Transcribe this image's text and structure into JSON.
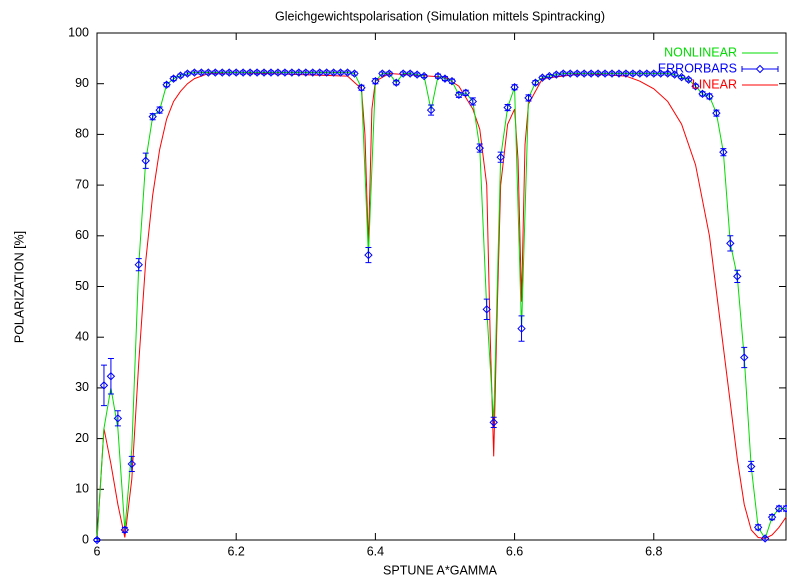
{
  "chart_data": {
    "type": "line",
    "title": "Gleichgewichtspolarisation (Simulation mittels Spintracking)",
    "xlabel": "SPTUNE A*GAMMA",
    "ylabel": "POLARIZATION [%]",
    "xlim": [
      6,
      6.99
    ],
    "ylim": [
      0,
      100
    ],
    "xticks": [
      6,
      6.2,
      6.4,
      6.6,
      6.8
    ],
    "yticks": [
      0,
      10,
      20,
      30,
      40,
      50,
      60,
      70,
      80,
      90,
      100
    ],
    "legend": "upper right",
    "series": [
      {
        "name": "NONLINEAR",
        "color": "#00dd00",
        "x": [
          6.0,
          6.01,
          6.02,
          6.03,
          6.04,
          6.05,
          6.06,
          6.07,
          6.08,
          6.09,
          6.1,
          6.11,
          6.12,
          6.13,
          6.14,
          6.15,
          6.16,
          6.17,
          6.18,
          6.19,
          6.2,
          6.21,
          6.22,
          6.23,
          6.24,
          6.25,
          6.26,
          6.27,
          6.28,
          6.29,
          6.3,
          6.31,
          6.32,
          6.33,
          6.34,
          6.35,
          6.36,
          6.37,
          6.38,
          6.39,
          6.4,
          6.41,
          6.42,
          6.43,
          6.44,
          6.45,
          6.46,
          6.47,
          6.48,
          6.49,
          6.5,
          6.51,
          6.52,
          6.53,
          6.54,
          6.55,
          6.56,
          6.57,
          6.58,
          6.59,
          6.6,
          6.61,
          6.62,
          6.63,
          6.64,
          6.65,
          6.66,
          6.67,
          6.68,
          6.69,
          6.7,
          6.71,
          6.72,
          6.73,
          6.74,
          6.75,
          6.76,
          6.77,
          6.78,
          6.79,
          6.8,
          6.81,
          6.82,
          6.83,
          6.84,
          6.85,
          6.86,
          6.87,
          6.88,
          6.89,
          6.9,
          6.91,
          6.92,
          6.93,
          6.94,
          6.95,
          6.96,
          6.97,
          6.98,
          6.99
        ],
        "values": [
          0,
          22,
          30,
          22,
          2,
          18,
          54.3,
          74.8,
          83.5,
          84.8,
          89.8,
          91,
          91.6,
          92,
          92.2,
          92.2,
          92.2,
          92.2,
          92.2,
          92.2,
          92.2,
          92.2,
          92.2,
          92.2,
          92.2,
          92.2,
          92.2,
          92.2,
          92.2,
          92.2,
          92.2,
          92.2,
          92.2,
          92.2,
          92.2,
          92.2,
          92.2,
          92,
          89.2,
          56.2,
          90.5,
          92,
          92,
          90.2,
          92,
          92,
          91.8,
          91.5,
          84.8,
          91.5,
          91,
          90.5,
          87.8,
          88.2,
          86.5,
          77.3,
          45.5,
          23.2,
          75.5,
          85.3,
          89.3,
          41.7,
          87.2,
          90.2,
          91.2,
          91.5,
          91.8,
          92,
          92,
          92,
          92,
          92,
          92,
          92,
          92,
          92,
          92,
          92,
          92,
          92,
          92,
          92,
          92,
          91.8,
          91.3,
          90.8,
          89.5,
          88,
          87.5,
          84.2,
          76.5,
          58.5,
          52,
          36,
          14.5,
          2.5,
          0.3,
          4.5,
          6.2,
          6.2
        ]
      },
      {
        "name": "ERRORBARS",
        "color": "#0000ff",
        "x": [
          6.0,
          6.01,
          6.02,
          6.03,
          6.04,
          6.05,
          6.06,
          6.07,
          6.08,
          6.09,
          6.1,
          6.11,
          6.12,
          6.13,
          6.14,
          6.15,
          6.16,
          6.17,
          6.18,
          6.19,
          6.2,
          6.21,
          6.22,
          6.23,
          6.24,
          6.25,
          6.26,
          6.27,
          6.28,
          6.29,
          6.3,
          6.31,
          6.32,
          6.33,
          6.34,
          6.35,
          6.36,
          6.37,
          6.38,
          6.39,
          6.4,
          6.41,
          6.42,
          6.43,
          6.44,
          6.45,
          6.46,
          6.47,
          6.48,
          6.49,
          6.5,
          6.51,
          6.52,
          6.53,
          6.54,
          6.55,
          6.56,
          6.57,
          6.58,
          6.59,
          6.6,
          6.61,
          6.62,
          6.63,
          6.64,
          6.65,
          6.66,
          6.67,
          6.68,
          6.69,
          6.7,
          6.71,
          6.72,
          6.73,
          6.74,
          6.75,
          6.76,
          6.77,
          6.78,
          6.79,
          6.8,
          6.81,
          6.82,
          6.83,
          6.84,
          6.85,
          6.86,
          6.87,
          6.88,
          6.89,
          6.9,
          6.91,
          6.92,
          6.93,
          6.94,
          6.95,
          6.96,
          6.97,
          6.98,
          6.99
        ],
        "values": [
          0,
          30.5,
          32.3,
          24,
          2,
          15,
          54.3,
          74.8,
          83.5,
          84.8,
          89.8,
          91,
          91.6,
          92,
          92.2,
          92.2,
          92.2,
          92.2,
          92.2,
          92.2,
          92.2,
          92.2,
          92.2,
          92.2,
          92.2,
          92.2,
          92.2,
          92.2,
          92.2,
          92.2,
          92.2,
          92.2,
          92.2,
          92.2,
          92.2,
          92.2,
          92.2,
          92,
          89.2,
          56.2,
          90.5,
          92,
          92,
          90.2,
          92,
          92,
          91.8,
          91.5,
          84.8,
          91.5,
          91,
          90.5,
          87.8,
          88.2,
          86.5,
          77.3,
          45.5,
          23.2,
          75.5,
          85.3,
          89.3,
          41.7,
          87.2,
          90.2,
          91.2,
          91.5,
          91.8,
          92,
          92,
          92,
          92,
          92,
          92,
          92,
          92,
          92,
          92,
          92,
          92,
          92,
          92,
          92,
          92,
          91.8,
          91.3,
          90.8,
          89.5,
          88,
          87.5,
          84.2,
          76.5,
          58.5,
          52,
          36,
          14.5,
          2.5,
          0.3,
          4.5,
          6.2,
          6.2
        ],
        "errors": [
          0.3,
          4,
          3.5,
          1.5,
          0.5,
          1.5,
          1.2,
          1.5,
          0.6,
          0.6,
          0.4,
          0.4,
          0.3,
          0.3,
          0.3,
          0.3,
          0.3,
          0.3,
          0.3,
          0.3,
          0.3,
          0.3,
          0.3,
          0.3,
          0.3,
          0.3,
          0.3,
          0.3,
          0.3,
          0.3,
          0.3,
          0.3,
          0.3,
          0.3,
          0.3,
          0.3,
          0.3,
          0.3,
          0.5,
          1.5,
          0.5,
          0.3,
          0.3,
          0.4,
          0.3,
          0.3,
          0.3,
          0.3,
          1,
          0.4,
          0.4,
          0.4,
          0.5,
          0.5,
          0.7,
          0.8,
          2,
          1,
          1,
          0.6,
          0.5,
          2.5,
          0.6,
          0.4,
          0.3,
          0.3,
          0.3,
          0.3,
          0.3,
          0.3,
          0.3,
          0.3,
          0.3,
          0.3,
          0.3,
          0.3,
          0.3,
          0.3,
          0.3,
          0.3,
          0.3,
          0.3,
          0.3,
          0.3,
          0.3,
          0.3,
          0.4,
          0.4,
          0.5,
          0.6,
          0.7,
          1.5,
          1.2,
          2,
          1,
          0.5,
          0.3,
          0.5,
          0.5,
          0.5
        ]
      },
      {
        "name": "LINEAR",
        "color": "#ff0000",
        "x": [
          6.0,
          6.01,
          6.02,
          6.03,
          6.04,
          6.05,
          6.06,
          6.07,
          6.08,
          6.09,
          6.1,
          6.11,
          6.12,
          6.13,
          6.14,
          6.16,
          6.2,
          6.36,
          6.38,
          6.385,
          6.39,
          6.395,
          6.4,
          6.42,
          6.5,
          6.52,
          6.54,
          6.55,
          6.56,
          6.565,
          6.57,
          6.575,
          6.58,
          6.59,
          6.6,
          6.605,
          6.61,
          6.615,
          6.62,
          6.64,
          6.7,
          6.76,
          6.78,
          6.8,
          6.82,
          6.84,
          6.86,
          6.88,
          6.9,
          6.92,
          6.93,
          6.94,
          6.95,
          6.96,
          6.97,
          6.98,
          6.99
        ],
        "values": [
          0,
          22,
          15,
          7,
          0.5,
          12,
          35,
          55,
          68,
          77,
          83,
          86.5,
          88.5,
          90,
          91,
          92,
          92.2,
          91.5,
          89,
          80,
          58,
          85,
          90.5,
          92,
          91.3,
          89.5,
          85,
          81,
          70,
          40,
          16.5,
          45,
          70,
          82,
          85,
          75,
          47,
          78,
          86,
          91,
          92,
          91.5,
          90.5,
          89,
          86.5,
          82,
          74,
          60,
          38,
          16,
          7,
          2,
          0.5,
          0.3,
          1,
          2.5,
          4.5
        ]
      }
    ]
  }
}
